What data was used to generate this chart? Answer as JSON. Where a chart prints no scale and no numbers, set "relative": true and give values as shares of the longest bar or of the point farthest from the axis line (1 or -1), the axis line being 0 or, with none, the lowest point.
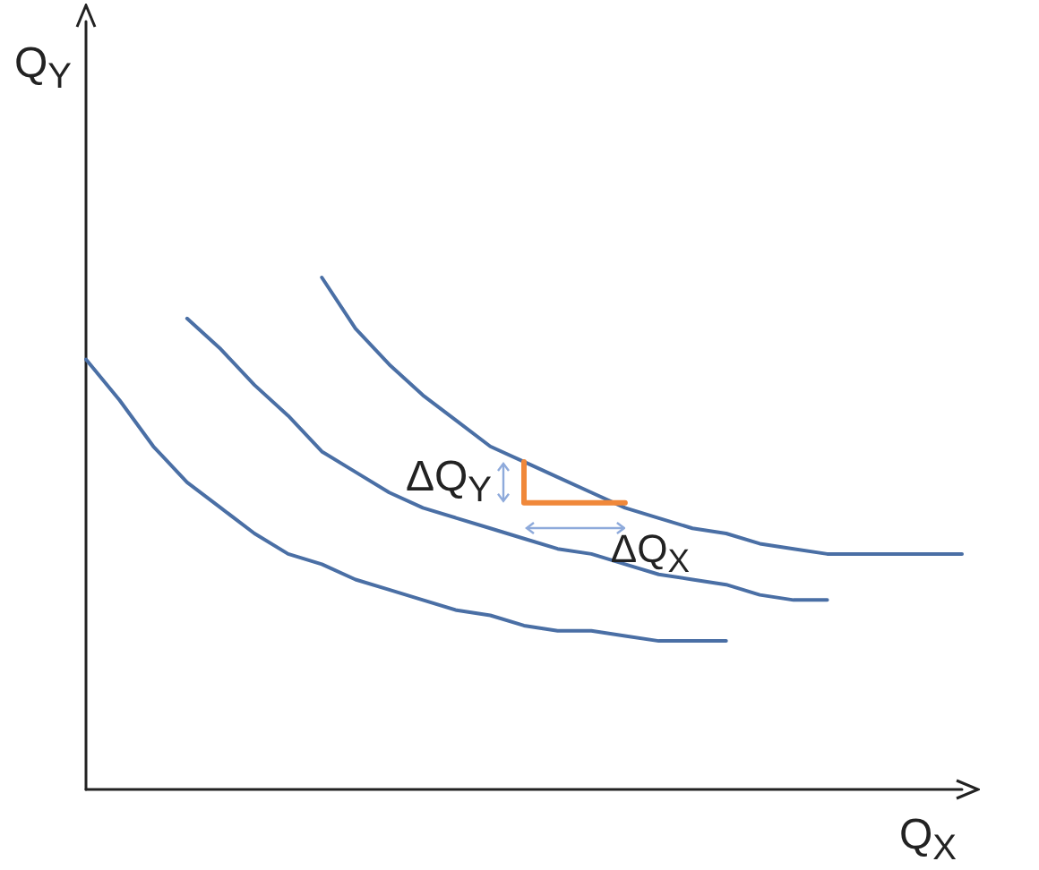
{
  "chart_data": {
    "type": "line",
    "relative": true,
    "xlabel": "Q$_{X}$",
    "ylabel": "Q$_{Y}$",
    "categories": [
      null,
      null,
      null,
      null,
      null,
      null,
      null,
      null,
      null,
      null,
      null,
      null,
      null,
      null,
      null,
      null,
      null,
      null,
      null,
      null,
      null,
      null,
      null,
      null,
      null,
      null,
      null
    ],
    "series": [
      {
        "color": "#4a6fa5",
        "values": [
          0.84,
          0.76,
          0.67,
          0.6,
          0.55,
          0.5,
          0.46,
          0.44,
          0.41,
          0.39,
          0.37,
          0.35,
          0.34,
          0.32,
          0.31,
          0.31,
          0.3,
          0.29,
          0.29,
          0.29,
          null,
          null,
          null,
          null,
          null,
          null,
          null
        ]
      },
      {
        "color": "#4a6fa5",
        "values": [
          null,
          null,
          null,
          0.92,
          0.86,
          0.79,
          0.73,
          0.66,
          0.62,
          0.58,
          0.55,
          0.53,
          0.51,
          0.49,
          0.47,
          0.46,
          0.44,
          0.42,
          0.41,
          0.4,
          0.38,
          0.37,
          0.37,
          null,
          null,
          null,
          null
        ]
      },
      {
        "color": "#4a6fa5",
        "values": [
          null,
          null,
          null,
          null,
          null,
          null,
          null,
          1.0,
          0.9,
          0.83,
          0.77,
          0.72,
          0.67,
          0.64,
          0.61,
          0.58,
          0.55,
          0.53,
          0.51,
          0.5,
          0.48,
          0.47,
          0.46,
          0.46,
          0.46,
          0.46,
          0.46
        ]
      },
      {
        "type": "step",
        "color": "#f0883a",
        "values": [
          null,
          null,
          null,
          null,
          null,
          null,
          null,
          null,
          null,
          null,
          null,
          null,
          null,
          0.64,
          0.56,
          0.56,
          0.56,
          null,
          null,
          null,
          null,
          null,
          null,
          null,
          null,
          null,
          null
        ]
      }
    ],
    "annotations": [
      "ΔQ$_{Y}$",
      "ΔQ$_{X}$"
    ],
    "grid": false,
    "marker": "none",
    "line_style": "solid"
  }
}
